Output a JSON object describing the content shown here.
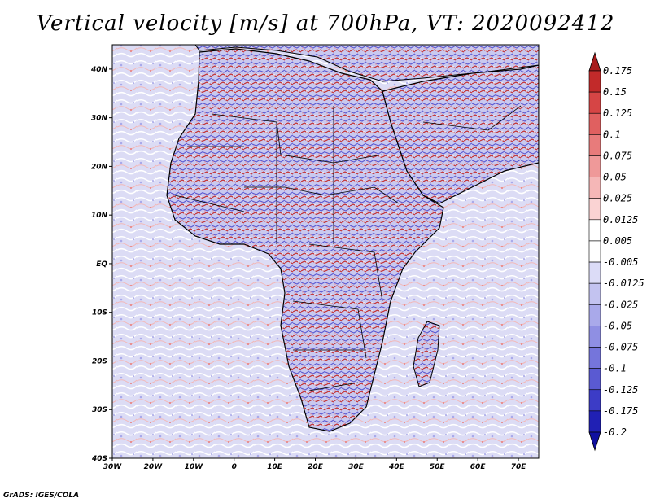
{
  "title": "Vertical velocity [m/s] at 700hPa, VT: 2020092412",
  "credit": "GrADS: IGES/COLA",
  "map": {
    "lon_range": [
      -30,
      75
    ],
    "lat_range": [
      -40,
      45
    ],
    "x_ticks": [
      {
        "value": -30,
        "label": "30W"
      },
      {
        "value": -20,
        "label": "20W"
      },
      {
        "value": -10,
        "label": "10W"
      },
      {
        "value": 0,
        "label": "0"
      },
      {
        "value": 10,
        "label": "10E"
      },
      {
        "value": 20,
        "label": "20E"
      },
      {
        "value": 30,
        "label": "30E"
      },
      {
        "value": 40,
        "label": "40E"
      },
      {
        "value": 50,
        "label": "50E"
      },
      {
        "value": 60,
        "label": "60E"
      },
      {
        "value": 70,
        "label": "70E"
      }
    ],
    "y_ticks": [
      {
        "value": 40,
        "label": "40N"
      },
      {
        "value": 30,
        "label": "30N"
      },
      {
        "value": 20,
        "label": "20N"
      },
      {
        "value": 10,
        "label": "10N"
      },
      {
        "value": 0,
        "label": "EQ"
      },
      {
        "value": -10,
        "label": "10S"
      },
      {
        "value": -20,
        "label": "20S"
      },
      {
        "value": -30,
        "label": "30S"
      },
      {
        "value": -40,
        "label": "40S"
      }
    ]
  },
  "colorbar": {
    "labels": [
      "0.175",
      "0.15",
      "0.125",
      "0.1",
      "0.075",
      "0.05",
      "0.025",
      "0.0125",
      "0.005",
      "-0.005",
      "-0.0125",
      "-0.025",
      "-0.05",
      "-0.075",
      "-0.1",
      "-0.125",
      "-0.175",
      "-0.2"
    ],
    "colors": [
      "#a81c1c",
      "#c22a2a",
      "#d64545",
      "#e06060",
      "#e87b7b",
      "#ef9999",
      "#f5b7b7",
      "#fad3d3",
      "#ffffff",
      "#ffffff",
      "#dcdcf7",
      "#c3c3f0",
      "#a9a9ea",
      "#8f8fe3",
      "#7575db",
      "#5a5ad2",
      "#3c3cc6",
      "#2020b4",
      "#1010a0"
    ]
  }
}
